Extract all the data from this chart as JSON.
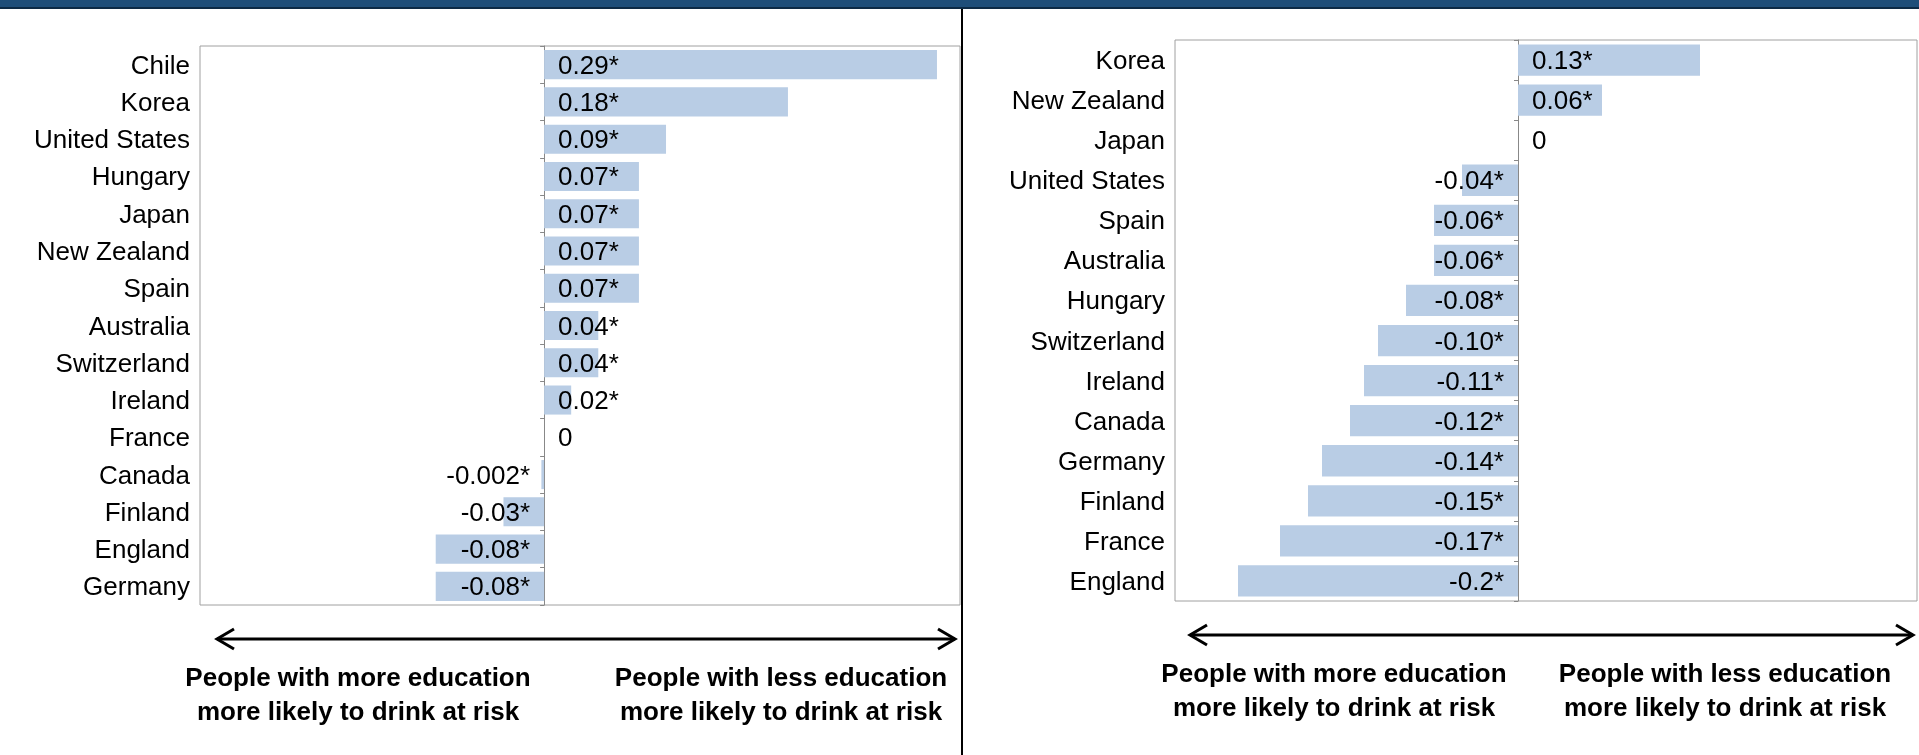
{
  "chart_data": [
    {
      "type": "bar",
      "orientation": "horizontal",
      "categories": [
        "Chile",
        "Korea",
        "United States",
        "Hungary",
        "Japan",
        "New Zealand",
        "Spain",
        "Australia",
        "Switzerland",
        "Ireland",
        "France",
        "Canada",
        "Finland",
        "England",
        "Germany"
      ],
      "values": [
        0.29,
        0.18,
        0.09,
        0.07,
        0.07,
        0.07,
        0.07,
        0.04,
        0.04,
        0.02,
        0,
        -0.002,
        -0.03,
        -0.08,
        -0.08
      ],
      "value_labels": [
        "0.29*",
        "0.18*",
        "0.09*",
        "0.07*",
        "0.07*",
        "0.07*",
        "0.07*",
        "0.04*",
        "0.04*",
        "0.02*",
        "0",
        "-0.002*",
        "-0.03*",
        "-0.08*",
        "-0.08*"
      ],
      "color": "#b9cde5",
      "xlim": [
        -0.254,
        0.307
      ],
      "tick_labels": "y",
      "grid": false,
      "annotations": [
        "People with more education more likely to drink at risk",
        "People with less education more likely to drink at risk"
      ]
    },
    {
      "type": "bar",
      "orientation": "horizontal",
      "categories": [
        "Korea",
        "New Zealand",
        "Japan",
        "United States",
        "Spain",
        "Australia",
        "Hungary",
        "Switzerland",
        "Ireland",
        "Canada",
        "Germany",
        "Finland",
        "France",
        "England"
      ],
      "values": [
        0.13,
        0.06,
        0,
        -0.04,
        -0.06,
        -0.06,
        -0.08,
        -0.1,
        -0.11,
        -0.12,
        -0.14,
        -0.15,
        -0.17,
        -0.2
      ],
      "value_labels": [
        "0.13*",
        "0.06*",
        "0",
        "-0.04*",
        "-0.06*",
        "-0.06*",
        "-0.08*",
        "-0.10*",
        "-0.11*",
        "-0.12*",
        "-0.14*",
        "-0.15*",
        "-0.17*",
        "-0.2*"
      ],
      "color": "#b9cde5",
      "xlim": [
        -0.245,
        0.285
      ],
      "tick_labels": "y",
      "grid": false,
      "annotations": [
        "People with more education more likely to drink at risk",
        "People with less education more likely to drink at risk"
      ]
    }
  ]
}
